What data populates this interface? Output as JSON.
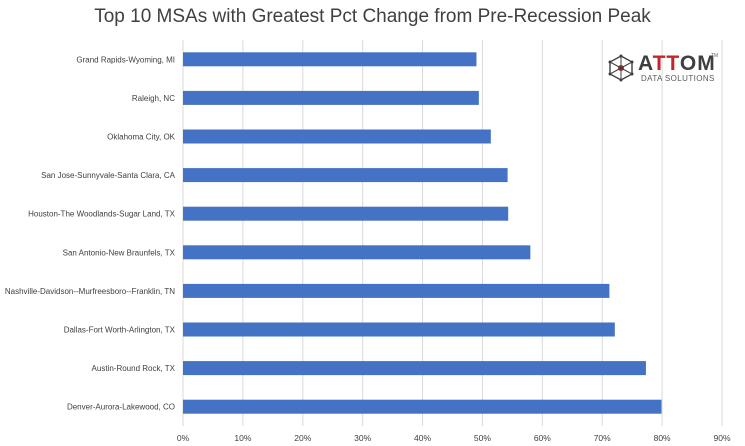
{
  "chart_data": {
    "type": "bar",
    "orientation": "horizontal",
    "title": "Top 10 MSAs with Greatest Pct Change from Pre-Recession Peak",
    "categories": [
      "Grand Rapids-Wyoming, MI",
      "Raleigh, NC",
      "Oklahoma City, OK",
      "San Jose-Sunnyvale-Santa Clara, CA",
      "Houston-The Woodlands-Sugar Land, TX",
      "San Antonio-New Braunfels, TX",
      "Nashville-Davidson--Murfreesboro--Franklin, TN",
      "Dallas-Fort Worth-Arlington, TX",
      "Austin-Round Rock, TX",
      "Denver-Aurora-Lakewood, CO"
    ],
    "values": [
      49,
      49.4,
      51.4,
      54.2,
      54.3,
      58,
      71.2,
      72.1,
      77.3,
      79.9
    ],
    "xlim": [
      0,
      90
    ],
    "xticks": [
      "0%",
      "10%",
      "20%",
      "30%",
      "40%",
      "50%",
      "60%",
      "70%",
      "80%",
      "90%"
    ],
    "grid": true,
    "bar_color": "#4472c4",
    "grid_color": "#d9d9d9",
    "text_color": "#404040"
  },
  "logo": {
    "name_a": "A",
    "name_tt": "TT",
    "name_om": "OM",
    "tm": "TM",
    "subtitle": "DATA SOLUTIONS",
    "accent_color": "#c0272d"
  }
}
